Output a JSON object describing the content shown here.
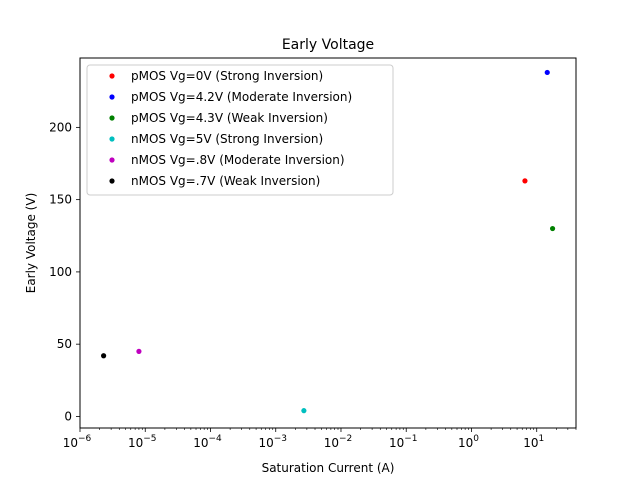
{
  "chart_data": {
    "type": "scatter",
    "title": "Early Voltage",
    "xlabel": "Saturation Current (A)",
    "ylabel": "Early Voltage (V)",
    "xscale": "log",
    "xlim": [
      1e-06,
      40
    ],
    "ylim": [
      -8,
      248
    ],
    "xticks": [
      {
        "value": 1e-06,
        "mant": "10",
        "exp": "−6"
      },
      {
        "value": 1e-05,
        "mant": "10",
        "exp": "−5"
      },
      {
        "value": 0.0001,
        "mant": "10",
        "exp": "−4"
      },
      {
        "value": 0.001,
        "mant": "10",
        "exp": "−3"
      },
      {
        "value": 0.01,
        "mant": "10",
        "exp": "−2"
      },
      {
        "value": 0.1,
        "mant": "10",
        "exp": "−1"
      },
      {
        "value": 1,
        "mant": "10",
        "exp": "0"
      },
      {
        "value": 10,
        "mant": "10",
        "exp": "1"
      }
    ],
    "yticks": [
      0,
      50,
      100,
      150,
      200
    ],
    "grid": false,
    "legend": "top-left",
    "series": [
      {
        "name": "pMOS Vg=0V (Strong Inversion)",
        "color": "#ff0000",
        "x": [
          6.6
        ],
        "y": [
          163
        ]
      },
      {
        "name": "pMOS Vg=4.2V (Moderate Inversion)",
        "color": "#0000ff",
        "x": [
          14.5
        ],
        "y": [
          238
        ]
      },
      {
        "name": "pMOS Vg=4.3V (Weak Inversion)",
        "color": "#008000",
        "x": [
          17.5
        ],
        "y": [
          130
        ]
      },
      {
        "name": "nMOS Vg=5V (Strong Inversion)",
        "color": "#00bfbf",
        "x": [
          0.0027
        ],
        "y": [
          4
        ]
      },
      {
        "name": "nMOS Vg=.8V (Moderate Inversion)",
        "color": "#bf00bf",
        "x": [
          8e-06
        ],
        "y": [
          45
        ]
      },
      {
        "name": "nMOS Vg=.7V (Weak Inversion)",
        "color": "#000000",
        "x": [
          2.3e-06
        ],
        "y": [
          42
        ]
      }
    ]
  }
}
